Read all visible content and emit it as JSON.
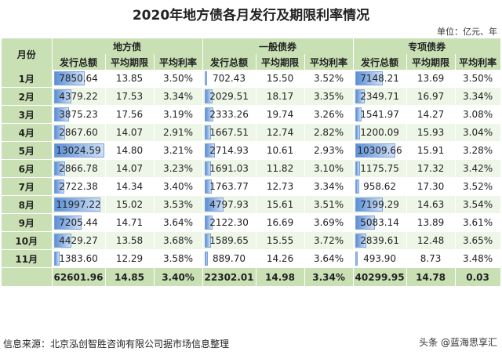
{
  "title": "2020年地方债各月发行及期限利率情况",
  "unit": "单位：亿元、年",
  "headers": {
    "month": "月份",
    "groups": [
      "地方债",
      "一般债券",
      "专项债券"
    ],
    "sub": [
      "发行总额",
      "平均期限",
      "平均利率"
    ]
  },
  "rows": [
    {
      "month": "1月",
      "local": [
        "7850.64",
        "13.85",
        "3.50%"
      ],
      "general": [
        "702.43",
        "15.50",
        "3.52%"
      ],
      "special": [
        "7148.21",
        "13.69",
        "3.50%"
      ],
      "amt": [
        7850.64,
        702.43,
        7148.21
      ]
    },
    {
      "month": "2月",
      "local": [
        "4379.22",
        "17.53",
        "3.34%"
      ],
      "general": [
        "2029.51",
        "18.17",
        "3.35%"
      ],
      "special": [
        "2349.71",
        "16.97",
        "3.34%"
      ],
      "amt": [
        4379.22,
        2029.51,
        2349.71
      ]
    },
    {
      "month": "3月",
      "local": [
        "3875.23",
        "17.56",
        "3.19%"
      ],
      "general": [
        "2333.26",
        "19.74",
        "3.26%"
      ],
      "special": [
        "1541.97",
        "14.27",
        "3.08%"
      ],
      "amt": [
        3875.23,
        2333.26,
        1541.97
      ]
    },
    {
      "month": "4月",
      "local": [
        "2867.60",
        "14.07",
        "2.91%"
      ],
      "general": [
        "1667.51",
        "12.74",
        "2.82%"
      ],
      "special": [
        "1200.09",
        "15.93",
        "3.04%"
      ],
      "amt": [
        2867.6,
        1667.51,
        1200.09
      ]
    },
    {
      "month": "5月",
      "local": [
        "13024.59",
        "14.80",
        "3.21%"
      ],
      "general": [
        "2714.93",
        "10.61",
        "2.93%"
      ],
      "special": [
        "10309.66",
        "15.91",
        "3.28%"
      ],
      "amt": [
        13024.59,
        2714.93,
        10309.66
      ]
    },
    {
      "month": "6月",
      "local": [
        "2866.78",
        "14.07",
        "3.23%"
      ],
      "general": [
        "1691.03",
        "11.82",
        "3.10%"
      ],
      "special": [
        "1175.75",
        "17.32",
        "3.42%"
      ],
      "amt": [
        2866.78,
        1691.03,
        1175.75
      ]
    },
    {
      "month": "7月",
      "local": [
        "2722.38",
        "14.34",
        "3.40%"
      ],
      "general": [
        "1763.77",
        "12.73",
        "3.34%"
      ],
      "special": [
        "958.62",
        "17.30",
        "3.52%"
      ],
      "amt": [
        2722.38,
        1763.77,
        958.62
      ]
    },
    {
      "month": "8月",
      "local": [
        "11997.22",
        "15.02",
        "3.53%"
      ],
      "general": [
        "4797.93",
        "15.61",
        "3.51%"
      ],
      "special": [
        "7199.29",
        "14.63",
        "3.54%"
      ],
      "amt": [
        11997.22,
        4797.93,
        7199.29
      ]
    },
    {
      "month": "9月",
      "local": [
        "7205.44",
        "14.71",
        "3.64%"
      ],
      "general": [
        "2122.30",
        "16.69",
        "3.69%"
      ],
      "special": [
        "5083.14",
        "13.89",
        "3.61%"
      ],
      "amt": [
        7205.44,
        2122.3,
        5083.14
      ]
    },
    {
      "month": "10月",
      "local": [
        "4429.27",
        "13.58",
        "3.68%"
      ],
      "general": [
        "1589.65",
        "15.55",
        "3.72%"
      ],
      "special": [
        "2839.61",
        "12.48",
        "3.65%"
      ],
      "amt": [
        4429.27,
        1589.65,
        2839.61
      ]
    },
    {
      "month": "11月",
      "local": [
        "1383.60",
        "12.29",
        "3.58%"
      ],
      "general": [
        "889.70",
        "14.26",
        "3.64%"
      ],
      "special": [
        "493.90",
        "8.73",
        "3.48%"
      ],
      "amt": [
        1383.6,
        889.7,
        493.9
      ]
    }
  ],
  "total": {
    "local": [
      "62601.96",
      "14.85",
      "3.40%"
    ],
    "general": [
      "22302.01",
      "14.98",
      "3.34%"
    ],
    "special": [
      "40299.95",
      "14.78",
      "0.03"
    ]
  },
  "source": "信息来源：北京泓创智胜咨询有限公司据市场信息整理",
  "watermark": "头条 @蓝海思享汇",
  "colors": {
    "header_bg": "#c9e0b4",
    "bar": "#5b8fd6"
  }
}
